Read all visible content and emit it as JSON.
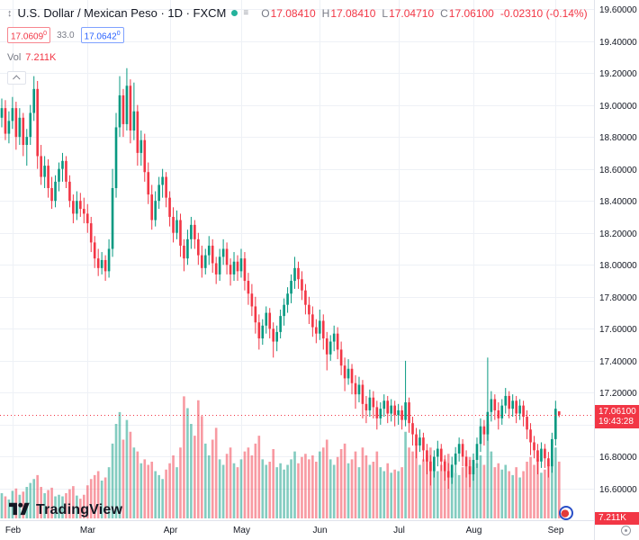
{
  "header": {
    "title": "U.S. Dollar / Mexican Peso · 1D · FXCM",
    "o_label": "O",
    "open": "17.08410",
    "h_label": "H",
    "high": "17.08410",
    "l_label": "L",
    "low": "17.04710",
    "c_label": "C",
    "close": "17.06100",
    "change": "-0.02310 (-0.14%)",
    "alert_red": "17.0609",
    "alert_red_sup": "0",
    "alert_mid": "33.0",
    "alert_blue": "17.0642",
    "alert_blue_sup": "0",
    "vol_label": "Vol",
    "vol_value": "7.211K"
  },
  "axes": {
    "price_labels": [
      "19.60000",
      "19.40000",
      "19.20000",
      "19.00000",
      "18.80000",
      "18.60000",
      "18.40000",
      "18.20000",
      "18.00000",
      "17.80000",
      "17.60000",
      "17.40000",
      "17.20000",
      "17.00000",
      "16.80000",
      "16.60000"
    ],
    "current_price_label": "17.06100",
    "countdown": "19:43:28",
    "volume_badge": "7.211K"
  },
  "branding": {
    "logo_text": "TradingView"
  },
  "colors": {
    "up": "#089981",
    "down": "#f23645",
    "vol_up": "rgba(8,153,129,0.5)",
    "vol_down": "rgba(242,54,69,0.5)",
    "accent_blue": "#2962ff",
    "grid": "#eef1f6",
    "axis_border": "#e0e3eb",
    "text": "#131722",
    "muted": "#787b86"
  },
  "chart_data": {
    "type": "candlestick",
    "title": "U.S. Dollar / Mexican Peso",
    "interval": "1D",
    "exchange": "FXCM",
    "price_axis": {
      "min": 16.6,
      "max": 19.6,
      "step": 0.2
    },
    "volume_unit": "K",
    "current": {
      "open": 17.0841,
      "high": 17.0841,
      "low": 17.0471,
      "close": 17.061,
      "change": -0.0231,
      "change_pct": -0.14,
      "volume_k": 7.211
    },
    "month_ticks": [
      {
        "label": "Feb",
        "index": 3
      },
      {
        "label": "Mar",
        "index": 24
      },
      {
        "label": "Apr",
        "index": 47
      },
      {
        "label": "May",
        "index": 67
      },
      {
        "label": "Jun",
        "index": 89
      },
      {
        "label": "Jul",
        "index": 111
      },
      {
        "label": "Aug",
        "index": 132
      },
      {
        "label": "Sep",
        "index": 155
      }
    ],
    "candles": [
      [
        18.92,
        19.04,
        18.86,
        18.98,
        3.2
      ],
      [
        18.98,
        19.03,
        18.78,
        18.82,
        2.8
      ],
      [
        18.82,
        18.96,
        18.76,
        18.9,
        2.4
      ],
      [
        18.9,
        19.05,
        18.85,
        18.98,
        3.5
      ],
      [
        18.98,
        19.02,
        18.72,
        18.8,
        3.8
      ],
      [
        18.8,
        18.98,
        18.75,
        18.92,
        3.0
      ],
      [
        18.92,
        18.95,
        18.68,
        18.75,
        3.4
      ],
      [
        18.75,
        18.85,
        18.62,
        18.8,
        4.0
      ],
      [
        18.8,
        19.0,
        18.75,
        18.95,
        4.5
      ],
      [
        18.95,
        19.18,
        18.9,
        19.1,
        5.0
      ],
      [
        19.1,
        19.15,
        18.6,
        18.68,
        5.5
      ],
      [
        18.68,
        18.75,
        18.5,
        18.55,
        4.0
      ],
      [
        18.55,
        18.68,
        18.48,
        18.62,
        3.2
      ],
      [
        18.62,
        18.66,
        18.42,
        18.48,
        3.6
      ],
      [
        18.48,
        18.55,
        18.35,
        18.4,
        3.9
      ],
      [
        18.4,
        18.56,
        18.36,
        18.52,
        2.8
      ],
      [
        18.52,
        18.64,
        18.46,
        18.6,
        3.0
      ],
      [
        18.6,
        18.7,
        18.52,
        18.65,
        2.8
      ],
      [
        18.65,
        18.68,
        18.48,
        18.52,
        3.2
      ],
      [
        18.52,
        18.56,
        18.36,
        18.4,
        3.7
      ],
      [
        18.4,
        18.44,
        18.26,
        18.32,
        4.1
      ],
      [
        18.32,
        18.46,
        18.28,
        18.4,
        2.9
      ],
      [
        18.4,
        18.45,
        18.3,
        18.35,
        2.5
      ],
      [
        18.35,
        18.42,
        18.26,
        18.32,
        3.0
      ],
      [
        18.32,
        18.38,
        18.2,
        18.26,
        4.2
      ],
      [
        18.26,
        18.3,
        18.08,
        18.14,
        5.0
      ],
      [
        18.14,
        18.18,
        17.98,
        18.04,
        5.5
      ],
      [
        18.04,
        18.1,
        17.93,
        17.98,
        6.0
      ],
      [
        17.98,
        18.08,
        17.94,
        18.03,
        4.8
      ],
      [
        18.03,
        18.06,
        17.9,
        17.96,
        5.2
      ],
      [
        17.96,
        18.16,
        17.92,
        18.1,
        6.5
      ],
      [
        18.1,
        18.6,
        18.05,
        18.48,
        9.5
      ],
      [
        18.48,
        18.95,
        18.42,
        18.86,
        12.0
      ],
      [
        18.86,
        19.18,
        18.8,
        19.06,
        13.5
      ],
      [
        19.06,
        19.1,
        18.8,
        18.88,
        10.0
      ],
      [
        18.88,
        19.23,
        18.84,
        19.12,
        12.5
      ],
      [
        19.12,
        19.16,
        18.76,
        18.84,
        11.0
      ],
      [
        18.84,
        19.14,
        18.78,
        18.96,
        9.0
      ],
      [
        18.96,
        19.0,
        18.62,
        18.7,
        8.5
      ],
      [
        18.7,
        18.84,
        18.62,
        18.78,
        7.0
      ],
      [
        18.78,
        18.82,
        18.52,
        18.58,
        7.5
      ],
      [
        18.58,
        18.64,
        18.38,
        18.44,
        6.8
      ],
      [
        18.44,
        18.5,
        18.22,
        18.28,
        7.2
      ],
      [
        18.28,
        18.46,
        18.24,
        18.4,
        6.0
      ],
      [
        18.4,
        18.55,
        18.35,
        18.5,
        5.5
      ],
      [
        18.5,
        18.6,
        18.42,
        18.55,
        5.0
      ],
      [
        18.55,
        18.58,
        18.36,
        18.42,
        6.2
      ],
      [
        18.42,
        18.46,
        18.24,
        18.3,
        7.0
      ],
      [
        18.3,
        18.36,
        18.14,
        18.2,
        8.0
      ],
      [
        18.2,
        18.34,
        18.16,
        18.28,
        6.5
      ],
      [
        18.28,
        18.32,
        18.05,
        18.12,
        9.0
      ],
      [
        18.12,
        18.16,
        17.96,
        18.04,
        15.5
      ],
      [
        18.04,
        18.22,
        18.0,
        18.16,
        14.0
      ],
      [
        18.16,
        18.3,
        18.1,
        18.25,
        12.0
      ],
      [
        18.25,
        18.28,
        18.1,
        18.16,
        10.5
      ],
      [
        18.16,
        18.2,
        18.0,
        18.06,
        15.0
      ],
      [
        18.06,
        18.12,
        17.92,
        17.98,
        13.0
      ],
      [
        17.98,
        18.1,
        17.94,
        18.06,
        9.5
      ],
      [
        18.06,
        18.18,
        18.0,
        18.12,
        8.0
      ],
      [
        18.12,
        18.16,
        17.95,
        18.01,
        10.0
      ],
      [
        18.01,
        18.05,
        17.88,
        17.94,
        11.5
      ],
      [
        17.94,
        18.1,
        17.9,
        18.05,
        7.5
      ],
      [
        18.05,
        18.16,
        18.0,
        18.1,
        6.8
      ],
      [
        18.1,
        18.14,
        17.94,
        18.0,
        8.2
      ],
      [
        18.0,
        18.04,
        17.87,
        17.94,
        9.0
      ],
      [
        17.94,
        18.08,
        17.9,
        18.02,
        7.0
      ],
      [
        18.02,
        18.06,
        17.9,
        17.96,
        6.5
      ],
      [
        17.96,
        18.1,
        17.92,
        18.04,
        7.5
      ],
      [
        18.04,
        18.08,
        17.84,
        17.9,
        8.5
      ],
      [
        17.9,
        17.95,
        17.75,
        17.82,
        9.0
      ],
      [
        17.82,
        17.88,
        17.68,
        17.74,
        8.0
      ],
      [
        17.74,
        17.8,
        17.57,
        17.64,
        9.5
      ],
      [
        17.64,
        17.69,
        17.47,
        17.54,
        10.5
      ],
      [
        17.54,
        17.66,
        17.5,
        17.62,
        7.5
      ],
      [
        17.62,
        17.74,
        17.57,
        17.7,
        6.8
      ],
      [
        17.7,
        17.73,
        17.54,
        17.6,
        7.2
      ],
      [
        17.6,
        17.64,
        17.42,
        17.52,
        8.8
      ],
      [
        17.52,
        17.62,
        17.46,
        17.58,
        6.5
      ],
      [
        17.58,
        17.72,
        17.54,
        17.68,
        7.0
      ],
      [
        17.68,
        17.79,
        17.62,
        17.75,
        6.2
      ],
      [
        17.75,
        17.86,
        17.7,
        17.82,
        6.8
      ],
      [
        17.82,
        17.94,
        17.76,
        17.9,
        7.5
      ],
      [
        17.9,
        18.05,
        17.85,
        17.98,
        8.5
      ],
      [
        17.98,
        18.02,
        17.85,
        17.91,
        7.0
      ],
      [
        17.91,
        17.96,
        17.78,
        17.84,
        7.8
      ],
      [
        17.84,
        17.88,
        17.69,
        17.75,
        8.2
      ],
      [
        17.75,
        17.8,
        17.63,
        17.69,
        7.5
      ],
      [
        17.69,
        17.74,
        17.55,
        17.61,
        8.0
      ],
      [
        17.61,
        17.66,
        17.51,
        17.57,
        7.2
      ],
      [
        17.57,
        17.72,
        17.53,
        17.65,
        8.5
      ],
      [
        17.65,
        17.69,
        17.47,
        17.54,
        9.0
      ],
      [
        17.54,
        17.58,
        17.34,
        17.44,
        10.0
      ],
      [
        17.44,
        17.56,
        17.4,
        17.52,
        7.5
      ],
      [
        17.52,
        17.62,
        17.46,
        17.57,
        6.8
      ],
      [
        17.57,
        17.61,
        17.41,
        17.47,
        7.8
      ],
      [
        17.47,
        17.52,
        17.31,
        17.37,
        8.8
      ],
      [
        17.37,
        17.42,
        17.21,
        17.29,
        9.5
      ],
      [
        17.29,
        17.41,
        17.25,
        17.35,
        7.0
      ],
      [
        17.35,
        17.38,
        17.19,
        17.26,
        7.5
      ],
      [
        17.26,
        17.31,
        17.1,
        17.19,
        8.5
      ],
      [
        17.19,
        17.3,
        17.14,
        17.25,
        6.5
      ],
      [
        17.25,
        17.28,
        17.04,
        17.13,
        9.0
      ],
      [
        17.13,
        17.18,
        17.01,
        17.09,
        8.0
      ],
      [
        17.09,
        17.22,
        17.05,
        17.17,
        6.8
      ],
      [
        17.17,
        17.21,
        17.04,
        17.11,
        7.2
      ],
      [
        17.11,
        17.15,
        16.97,
        17.04,
        8.5
      ],
      [
        17.04,
        17.14,
        17.0,
        17.1,
        6.5
      ],
      [
        17.1,
        17.19,
        17.05,
        17.15,
        6.0
      ],
      [
        17.15,
        17.18,
        17.01,
        17.07,
        7.0
      ],
      [
        17.07,
        17.16,
        17.02,
        17.12,
        5.8
      ],
      [
        17.12,
        17.15,
        16.99,
        17.06,
        6.2
      ],
      [
        17.06,
        17.13,
        17.0,
        17.09,
        6.0
      ],
      [
        17.09,
        17.12,
        16.97,
        17.03,
        6.5
      ],
      [
        17.03,
        17.4,
        16.99,
        17.14,
        11.0
      ],
      [
        17.14,
        17.17,
        16.95,
        17.01,
        9.0
      ],
      [
        17.01,
        17.05,
        16.87,
        16.94,
        8.5
      ],
      [
        16.94,
        16.98,
        16.79,
        16.87,
        9.5
      ],
      [
        16.87,
        16.97,
        16.83,
        16.92,
        6.8
      ],
      [
        16.92,
        16.95,
        16.77,
        16.84,
        7.5
      ],
      [
        16.84,
        16.88,
        16.69,
        16.77,
        8.0
      ],
      [
        16.77,
        16.81,
        16.62,
        16.71,
        9.0
      ],
      [
        16.71,
        16.84,
        16.67,
        16.8,
        6.5
      ],
      [
        16.8,
        16.9,
        16.74,
        16.85,
        6.0
      ],
      [
        16.85,
        16.88,
        16.71,
        16.77,
        6.8
      ],
      [
        16.77,
        16.81,
        16.65,
        16.71,
        7.5
      ],
      [
        16.71,
        16.76,
        16.6,
        16.67,
        8.2
      ],
      [
        16.67,
        16.8,
        16.63,
        16.75,
        6.2
      ],
      [
        16.75,
        16.86,
        16.7,
        16.82,
        5.8
      ],
      [
        16.82,
        16.92,
        16.77,
        16.88,
        5.5
      ],
      [
        16.88,
        16.91,
        16.74,
        16.8,
        6.5
      ],
      [
        16.8,
        16.84,
        16.67,
        16.74,
        7.0
      ],
      [
        16.74,
        16.78,
        16.61,
        16.69,
        7.8
      ],
      [
        16.69,
        16.82,
        16.65,
        16.78,
        6.5
      ],
      [
        16.78,
        16.92,
        16.73,
        16.88,
        7.0
      ],
      [
        16.88,
        17.04,
        16.83,
        16.99,
        8.0
      ],
      [
        16.99,
        17.03,
        16.87,
        16.94,
        6.8
      ],
      [
        16.94,
        17.42,
        16.9,
        17.08,
        12.0
      ],
      [
        17.08,
        17.21,
        17.02,
        17.16,
        8.5
      ],
      [
        17.16,
        17.19,
        17.03,
        17.09,
        6.5
      ],
      [
        17.09,
        17.14,
        16.97,
        17.04,
        7.0
      ],
      [
        17.04,
        17.16,
        17.0,
        17.12,
        6.2
      ],
      [
        17.12,
        17.23,
        17.07,
        17.18,
        6.8
      ],
      [
        17.18,
        17.21,
        17.04,
        17.1,
        6.0
      ],
      [
        17.1,
        17.19,
        17.05,
        17.15,
        5.5
      ],
      [
        17.15,
        17.18,
        17.01,
        17.07,
        6.5
      ],
      [
        17.07,
        17.16,
        17.03,
        17.12,
        5.2
      ],
      [
        17.12,
        17.15,
        16.99,
        17.05,
        6.0
      ],
      [
        17.05,
        17.09,
        16.91,
        16.97,
        7.2
      ],
      [
        16.97,
        17.01,
        16.81,
        16.89,
        7.8
      ],
      [
        16.89,
        16.93,
        16.79,
        16.84,
        6.8
      ],
      [
        16.84,
        16.88,
        16.69,
        16.77,
        7.5
      ],
      [
        16.77,
        16.89,
        16.73,
        16.85,
        5.8
      ],
      [
        16.85,
        16.88,
        16.73,
        16.79,
        6.2
      ],
      [
        16.79,
        16.83,
        16.67,
        16.74,
        6.8
      ],
      [
        16.74,
        16.95,
        16.7,
        16.91,
        7.5
      ],
      [
        16.91,
        17.15,
        16.87,
        17.1,
        9.0
      ],
      [
        17.0841,
        17.0841,
        17.0471,
        17.061,
        7.211
      ]
    ]
  }
}
